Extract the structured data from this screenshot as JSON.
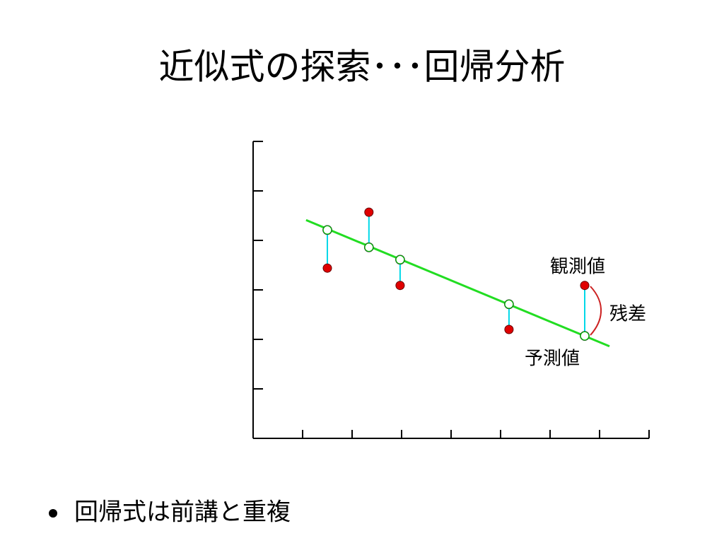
{
  "title": "近似式の探索･･･回帰分析",
  "chart_data": {
    "type": "scatter",
    "xlim": [
      0,
      8
    ],
    "ylim": [
      0,
      6
    ],
    "xticks": [
      1,
      2,
      3,
      4,
      5,
      6,
      7,
      8
    ],
    "yticks": [
      1,
      2,
      3,
      4,
      5,
      6
    ],
    "x": [
      1.5,
      2.34,
      2.97,
      5.17,
      6.7
    ],
    "observed": [
      3.44,
      4.57,
      3.09,
      2.2,
      3.09
    ],
    "observed_color": "#e00000",
    "predicted": [
      4.21,
      3.86,
      3.61,
      2.71,
      2.07
    ],
    "predicted_color": "#00cc00",
    "residual_color": "#00d8e8",
    "fit_line": {
      "x": [
        1.07,
        7.2
      ],
      "y": [
        4.41,
        1.86
      ],
      "color": "#22dd22"
    },
    "annotations": {
      "observed": "観測値",
      "residual": "残差",
      "predicted": "予測値"
    }
  },
  "bullets": [
    "回帰式は前講と重複"
  ]
}
